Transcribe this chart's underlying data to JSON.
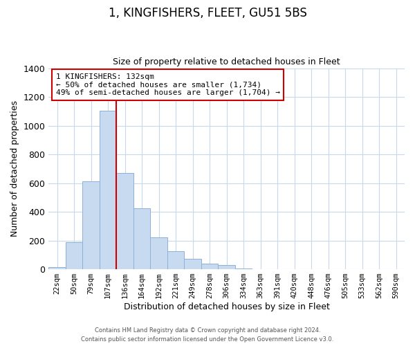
{
  "title": "1, KINGFISHERS, FLEET, GU51 5BS",
  "subtitle": "Size of property relative to detached houses in Fleet",
  "xlabel": "Distribution of detached houses by size in Fleet",
  "ylabel": "Number of detached properties",
  "bar_color": "#c8daf0",
  "bar_edge_color": "#8cb0d8",
  "categories": [
    "22sqm",
    "50sqm",
    "79sqm",
    "107sqm",
    "136sqm",
    "164sqm",
    "192sqm",
    "221sqm",
    "249sqm",
    "278sqm",
    "306sqm",
    "334sqm",
    "363sqm",
    "391sqm",
    "420sqm",
    "448sqm",
    "476sqm",
    "505sqm",
    "533sqm",
    "562sqm",
    "590sqm"
  ],
  "values": [
    15,
    190,
    610,
    1105,
    670,
    425,
    220,
    125,
    75,
    40,
    27,
    5,
    0,
    0,
    0,
    0,
    0,
    0,
    0,
    0,
    0
  ],
  "ylim": [
    0,
    1400
  ],
  "yticks": [
    0,
    200,
    400,
    600,
    800,
    1000,
    1200,
    1400
  ],
  "property_line_label": "1 KINGFISHERS: 132sqm",
  "annotation_line1": "← 50% of detached houses are smaller (1,734)",
  "annotation_line2": "49% of semi-detached houses are larger (1,704) →",
  "annotation_box_color": "#ffffff",
  "annotation_box_edge": "#cc0000",
  "property_line_color": "#cc0000",
  "footer1": "Contains HM Land Registry data © Crown copyright and database right 2024.",
  "footer2": "Contains public sector information licensed under the Open Government Licence v3.0.",
  "bg_color": "#ffffff",
  "grid_color": "#c8d8ec"
}
